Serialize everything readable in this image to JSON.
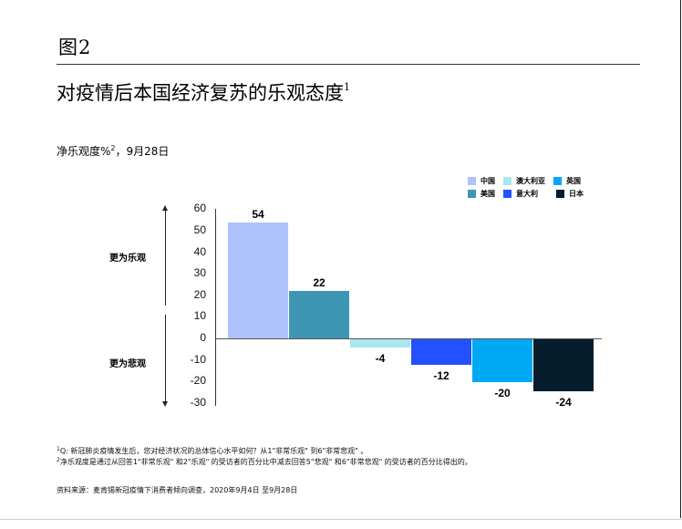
{
  "figure": {
    "label": "图2",
    "title": "对疫情后本国经济复苏的乐观态度",
    "title_sup": "1",
    "subtitle": "净乐观度%",
    "subtitle_sup": "2",
    "subtitle_suffix": "，9月28日"
  },
  "side_labels": {
    "up": "更为乐观",
    "down": "更为悲观"
  },
  "footnotes": [
    {
      "sup": "1",
      "text": "Q: 新冠肺炎疫情发生后，您对经济状况的总体信心水平如何？从1\"非常乐观\" 到6\"非常悲观\" 。"
    },
    {
      "sup": "2",
      "text": "净乐观度是通过从回答1\"非常乐观\" 和2\"乐观\" 的受访者的百分比中减去回答5\"悲观\" 和6\"非常悲观\" 的受访者的百分比得出的。"
    }
  ],
  "source": "资料来源：麦肯锡新冠疫情下消费者倾向调查，2020年9月4日 至9月28日",
  "chart_data": {
    "type": "bar",
    "title": "对疫情后本国经济复苏的乐观态度",
    "subtitle": "净乐观度%，9月28日",
    "xlabel": "",
    "ylabel": "净乐观度%",
    "categories": [
      "中国",
      "美国",
      "澳大利亚",
      "意大利",
      "英国",
      "日本"
    ],
    "values": [
      54,
      22,
      -4,
      -12,
      -20,
      -24
    ],
    "colors": [
      "#aec3fb",
      "#3e96b5",
      "#aae6ef",
      "#2251ff",
      "#00a9f4",
      "#051c2c"
    ],
    "data_labels": [
      "54",
      "22",
      "-4",
      "-12",
      "-20",
      "-24"
    ],
    "ylim": [
      -30,
      60
    ],
    "yticks": [
      60,
      50,
      40,
      30,
      20,
      10,
      0,
      -10,
      -20,
      -30
    ],
    "grid": false,
    "legend_position": "top-right",
    "legend": [
      {
        "label": "中国",
        "color": "#aec3fb"
      },
      {
        "label": "澳大利亚",
        "color": "#aae6ef"
      },
      {
        "label": "英国",
        "color": "#00a9f4"
      },
      {
        "label": "美国",
        "color": "#3e96b5"
      },
      {
        "label": "意大利",
        "color": "#2251ff"
      },
      {
        "label": "日本",
        "color": "#051c2c"
      }
    ],
    "annotations": [
      "更为乐观",
      "更为悲观"
    ]
  }
}
